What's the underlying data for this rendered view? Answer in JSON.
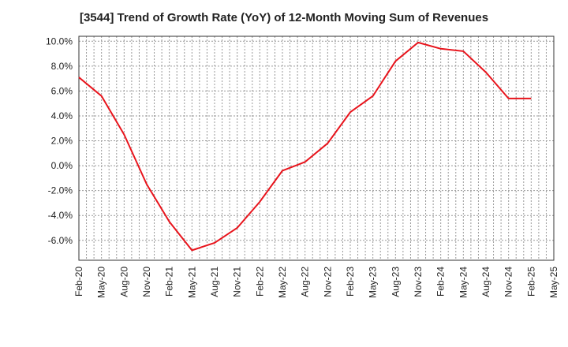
{
  "chart_data": {
    "type": "line",
    "title": "[3544]  Trend of Growth Rate (YoY) of 12-Month Moving Sum of Revenues",
    "xlabel": "",
    "ylabel": "",
    "grid": true,
    "ylim": [
      -7.6,
      10.4
    ],
    "y_ticks": [
      10,
      8,
      6,
      4,
      2,
      0,
      -2,
      -4,
      -6
    ],
    "y_tick_labels": [
      "10.0%",
      "8.0%",
      "6.0%",
      "4.0%",
      "2.0%",
      "0.0%",
      "-2.0%",
      "-4.0%",
      "-6.0%"
    ],
    "x_tick_labels": [
      "Feb-20",
      "May-20",
      "Aug-20",
      "Nov-20",
      "Feb-21",
      "May-21",
      "Aug-21",
      "Nov-21",
      "Feb-22",
      "May-22",
      "Aug-22",
      "Nov-22",
      "Feb-23",
      "May-23",
      "Aug-23",
      "Nov-23",
      "Feb-24",
      "May-24",
      "Aug-24",
      "Nov-24",
      "Feb-25",
      "May-25"
    ],
    "line_color": "#e8141c",
    "series": [
      {
        "x": [
          "Feb-20",
          "May-20",
          "Aug-20",
          "Nov-20",
          "Feb-21",
          "May-21",
          "Aug-21",
          "Nov-21",
          "Feb-22",
          "May-22",
          "Aug-22",
          "Nov-22",
          "Feb-23",
          "May-23",
          "Aug-23",
          "Nov-23",
          "Feb-24",
          "May-24",
          "Aug-24",
          "Nov-24",
          "Feb-25"
        ],
        "values": [
          7.1,
          5.6,
          2.5,
          -1.5,
          -4.5,
          -6.8,
          -6.2,
          -5.0,
          -2.9,
          -0.4,
          0.3,
          1.8,
          4.3,
          5.6,
          8.4,
          9.9,
          9.4,
          9.2,
          7.5,
          5.4,
          5.4
        ]
      }
    ]
  }
}
